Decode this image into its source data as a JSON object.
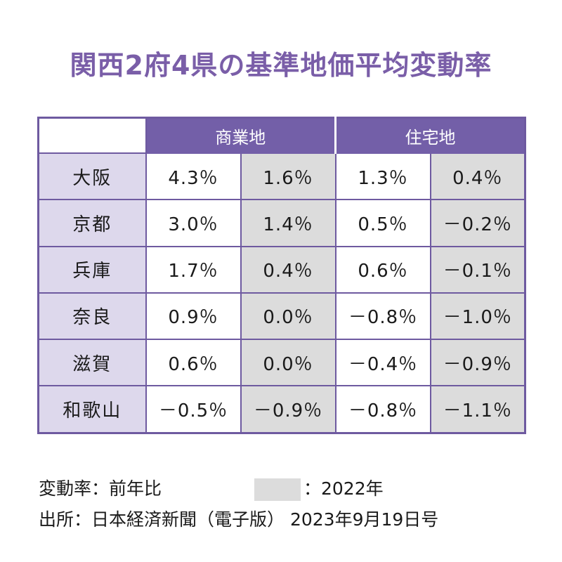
{
  "title": "関西2府4県の基準地価平均変動率",
  "chart_data": {
    "type": "table",
    "column_groups": [
      "商業地",
      "住宅地"
    ],
    "rows": [
      {
        "region": "大阪",
        "commercial": [
          "4.3％",
          "1.6％"
        ],
        "residential": [
          "1.3％",
          "0.4％"
        ]
      },
      {
        "region": "京都",
        "commercial": [
          "3.0％",
          "1.4％"
        ],
        "residential": [
          "0.5％",
          "－0.2％"
        ]
      },
      {
        "region": "兵庫",
        "commercial": [
          "1.7％",
          "0.4％"
        ],
        "residential": [
          "0.6％",
          "－0.1％"
        ]
      },
      {
        "region": "奈良",
        "commercial": [
          "0.9％",
          "0.0％"
        ],
        "residential": [
          "－0.8％",
          "－1.0％"
        ]
      },
      {
        "region": "滋賀",
        "commercial": [
          "0.6％",
          "0.0％"
        ],
        "residential": [
          "－0.4％",
          "－0.9％"
        ]
      },
      {
        "region": "和歌山",
        "commercial": [
          "－0.5％",
          "－0.9％"
        ],
        "residential": [
          "－0.8％",
          "－1.1％"
        ]
      }
    ],
    "colors": {
      "title": "#7a5ea8",
      "header": "#735fa8",
      "row_label_bg": "#ddd8ec",
      "previous_year_bg": "#dcdcdc"
    }
  },
  "footer": {
    "note": "変動率：前年比",
    "legend_label": "：2022年",
    "source": "出所：日本経済新聞（電子版） 2023年9月19日号"
  }
}
